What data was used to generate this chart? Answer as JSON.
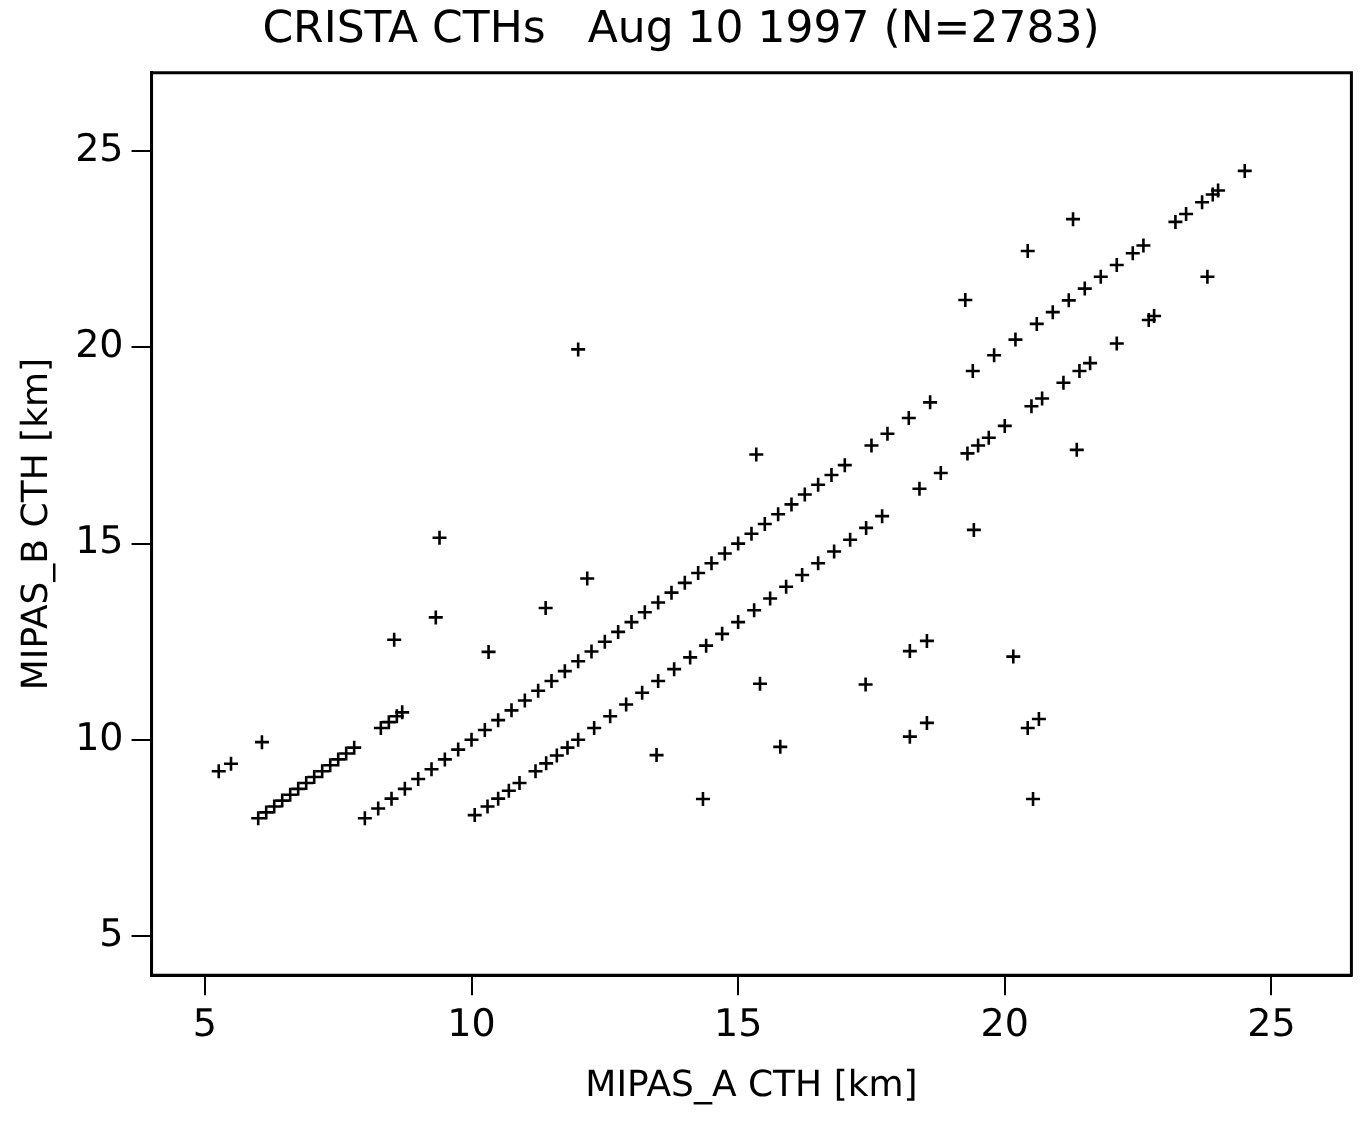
{
  "chart_data": {
    "type": "scatter",
    "title": "CRISTA CTHs   Aug 10 1997 (N=2783)",
    "xlabel": "MIPAS_A CTH [km]",
    "ylabel": "MIPAS_B CTH [km]",
    "xlim": [
      4,
      26.5
    ],
    "ylim": [
      4,
      27
    ],
    "xticks": [
      5,
      10,
      15,
      20,
      25
    ],
    "yticks": [
      5,
      10,
      15,
      20,
      25
    ],
    "grid": false,
    "marker": "cross",
    "series": [
      {
        "color": "#000000",
        "x": [
          8,
          8.25,
          8.5,
          8.75,
          9,
          9.25,
          9.5,
          9.75,
          10,
          10.25,
          10.5,
          10.75,
          11,
          11.25,
          11.5,
          11.75,
          12,
          12.25,
          12.5,
          12.75,
          13,
          13.25,
          13.5,
          13.75,
          14,
          14.25,
          14.5,
          14.75,
          15,
          15.25,
          15.5,
          15.75,
          16,
          16.25,
          16.5,
          16.75,
          17,
          17.5,
          17.8,
          18.2,
          18.6,
          19.4,
          19.8,
          20.2,
          20.6,
          20.9,
          21.2,
          21.5,
          21.8,
          22.1,
          22.4,
          22.6,
          23.2,
          23.4,
          23.7,
          23.9,
          24,
          24.5,
          6,
          6.15,
          6.3,
          6.45,
          6.6,
          6.75,
          6.9,
          7.05,
          7.2,
          7.35,
          7.5,
          7.65,
          7.8,
          8.3,
          8.45,
          8.6,
          8.7,
          10.06,
          10.3,
          10.5,
          10.7,
          10.9,
          11.2,
          11.4,
          11.6,
          11.8,
          12,
          12.3,
          12.6,
          12.9,
          13.2,
          13.5,
          13.8,
          14.1,
          14.4,
          14.7,
          15,
          15.3,
          15.6,
          15.9,
          16.2,
          16.5,
          16.8,
          17.1,
          17.4,
          17.7,
          18.4,
          18.8,
          19.3,
          19.5,
          19.7,
          20,
          20.5,
          20.7,
          21.1,
          21.4,
          21.6,
          22.1,
          22.7,
          22.8,
          23.8,
          12,
          5.26,
          5.49,
          6.07,
          9.4,
          9.33,
          8.55,
          10.32,
          11.39,
          12.17,
          13.47,
          14.34,
          15.34,
          19.26,
          20.43,
          21.28,
          21.35,
          19.42,
          15.41,
          15.79,
          17.39,
          18.22,
          18.54,
          20.16,
          18.22,
          18.54,
          20.43,
          20.64,
          20.53
        ],
        "values": [
          8,
          8.25,
          8.5,
          8.75,
          9,
          9.25,
          9.5,
          9.75,
          10,
          10.25,
          10.5,
          10.75,
          11,
          11.25,
          11.5,
          11.75,
          12,
          12.25,
          12.5,
          12.75,
          13,
          13.25,
          13.5,
          13.75,
          14,
          14.25,
          14.5,
          14.75,
          15,
          15.25,
          15.5,
          15.75,
          16,
          16.25,
          16.5,
          16.75,
          17,
          17.5,
          17.8,
          18.2,
          18.6,
          19.4,
          19.8,
          20.2,
          20.6,
          20.9,
          21.2,
          21.5,
          21.8,
          22.1,
          22.4,
          22.6,
          23.2,
          23.4,
          23.7,
          23.9,
          24,
          24.5,
          8,
          8.15,
          8.3,
          8.45,
          8.6,
          8.75,
          8.9,
          9.05,
          9.2,
          9.35,
          9.5,
          9.65,
          9.8,
          10.3,
          10.45,
          10.6,
          10.7,
          8.08,
          8.3,
          8.5,
          8.7,
          8.9,
          9.2,
          9.4,
          9.6,
          9.8,
          10,
          10.3,
          10.6,
          10.9,
          11.2,
          11.5,
          11.8,
          12.1,
          12.4,
          12.7,
          13,
          13.3,
          13.6,
          13.9,
          14.2,
          14.5,
          14.8,
          15.1,
          15.4,
          15.7,
          16.4,
          16.8,
          17.3,
          17.5,
          17.7,
          18,
          18.5,
          18.7,
          19.1,
          19.4,
          19.6,
          20.1,
          20.7,
          20.8,
          21.8,
          19.95,
          9.2,
          9.39,
          9.94,
          15.15,
          13.12,
          12.55,
          12.24,
          13.36,
          14.11,
          9.61,
          8.49,
          17.27,
          21.21,
          22.46,
          23.27,
          17.39,
          15.35,
          11.43,
          9.82,
          11.41,
          12.26,
          12.52,
          12.12,
          10.08,
          10.43,
          10.3,
          10.53,
          8.49
        ]
      }
    ]
  }
}
